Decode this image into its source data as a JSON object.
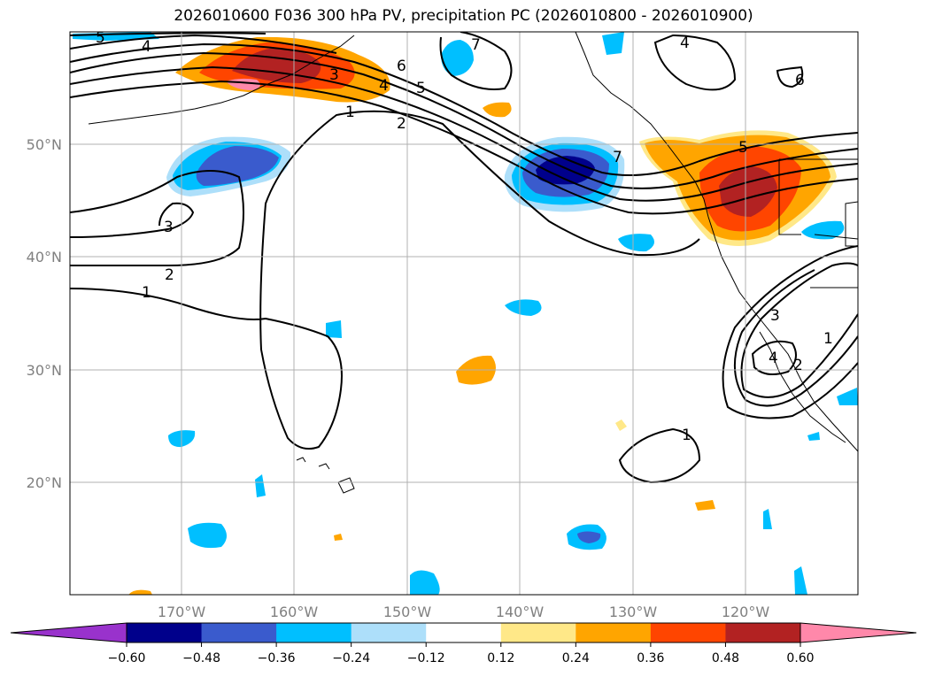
{
  "title": "2026010600 F036 300 hPa PV, precipitation PC (2026010800 - 2026010900)",
  "lon_labels": [
    "170°W",
    "160°W",
    "150°W",
    "140°W",
    "130°W",
    "120°W"
  ],
  "lat_labels": [
    "50°N",
    "40°N",
    "30°N",
    "20°N"
  ],
  "colorbar": {
    "ticks": [
      "−0.60",
      "−0.48",
      "−0.36",
      "−0.24",
      "−0.12",
      "0.12",
      "0.24",
      "0.36",
      "0.48",
      "0.60"
    ],
    "colors": [
      "#9932CC",
      "#00008B",
      "#3A5BCD",
      "#00BFFF",
      "#ADDFFA",
      "#FFFFFF",
      "#FFE888",
      "#FFA500",
      "#FF4500",
      "#B22222",
      "#FF88AA"
    ]
  },
  "contour_labels": [
    "1",
    "2",
    "3",
    "4",
    "5",
    "6",
    "7"
  ]
}
